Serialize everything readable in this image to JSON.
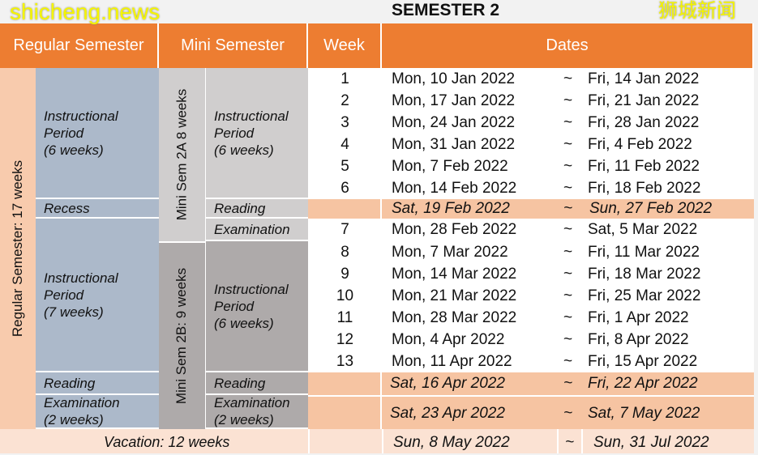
{
  "title": "SEMESTER 2",
  "headers": {
    "regular": "Regular Semester",
    "mini": "Mini Semester",
    "week": "Week",
    "dates": "Dates"
  },
  "regular": {
    "label": "Regular Semester: 17 weeks",
    "instr1": [
      "Instructional",
      "Period",
      "(6 weeks)"
    ],
    "recess": "Recess",
    "instr2": [
      "Instructional",
      "Period",
      "(7 weeks)"
    ],
    "reading": "Reading",
    "exam": [
      "Examination",
      "(2 weeks)"
    ]
  },
  "mini": {
    "a_label": "Mini Sem 2A 8 weeks",
    "b_label": "Mini Sem 2B: 9 weeks",
    "instr_a": [
      "Instructional",
      "Period",
      "(6 weeks)"
    ],
    "reading_a": "Reading",
    "exam_a": "Examination",
    "instr_b": [
      "Instructional",
      "Period",
      "(6 weeks)"
    ],
    "reading_b": "Reading",
    "exam_b": [
      "Examination",
      "(2 weeks)"
    ]
  },
  "weeks": [
    {
      "week": "1",
      "start": "Mon, 10 Jan 2022",
      "end": "Fri, 14 Jan 2022"
    },
    {
      "week": "2",
      "start": "Mon, 17 Jan 2022",
      "end": "Fri, 21 Jan 2022"
    },
    {
      "week": "3",
      "start": "Mon, 24 Jan 2022",
      "end": "Fri, 28 Jan 2022"
    },
    {
      "week": "4",
      "start": "Mon, 31 Jan 2022",
      "end": "Fri, 4 Feb 2022"
    },
    {
      "week": "5",
      "start": "Mon, 7 Feb 2022",
      "end": "Fri, 11 Feb 2022"
    },
    {
      "week": "6",
      "start": "Mon, 14 Feb 2022",
      "end": "Fri, 18 Feb 2022"
    },
    {
      "week": "7",
      "start": "Mon, 28 Feb 2022",
      "end": "Sat, 5 Mar 2022"
    },
    {
      "week": "8",
      "start": "Mon, 7 Mar 2022",
      "end": "Fri, 11 Mar 2022"
    },
    {
      "week": "9",
      "start": "Mon, 14 Mar 2022",
      "end": "Fri, 18 Mar 2022"
    },
    {
      "week": "10",
      "start": "Mon, 21 Mar 2022",
      "end": "Fri, 25 Mar 2022"
    },
    {
      "week": "11",
      "start": "Mon, 28 Mar 2022",
      "end": "Fri, 1 Apr 2022"
    },
    {
      "week": "12",
      "start": "Mon, 4 Apr 2022",
      "end": "Fri, 8 Apr 2022"
    },
    {
      "week": "13",
      "start": "Mon, 11 Apr 2022",
      "end": "Fri, 15 Apr 2022"
    }
  ],
  "recess_dates": {
    "start": "Sat, 19 Feb 2022",
    "end": "Sun, 27 Feb 2022"
  },
  "reading_dates": {
    "start": "Sat, 16 Apr 2022",
    "end": "Fri, 22 Apr 2022"
  },
  "exam_dates": {
    "start": "Sat, 23 Apr 2022",
    "end": "Sat, 7 May 2022"
  },
  "vacation": {
    "label": "Vacation: 12 weeks",
    "start": "Sun, 8 May 2022",
    "end": "Sun, 31 Jul 2022"
  },
  "separator": "~",
  "watermarks": {
    "top": "狮城新闻",
    "bottom": "shicheng.news"
  },
  "colors": {
    "header": "#ed7d31",
    "highlight": "#f6c4a2",
    "regular": "#acb9ca"
  }
}
